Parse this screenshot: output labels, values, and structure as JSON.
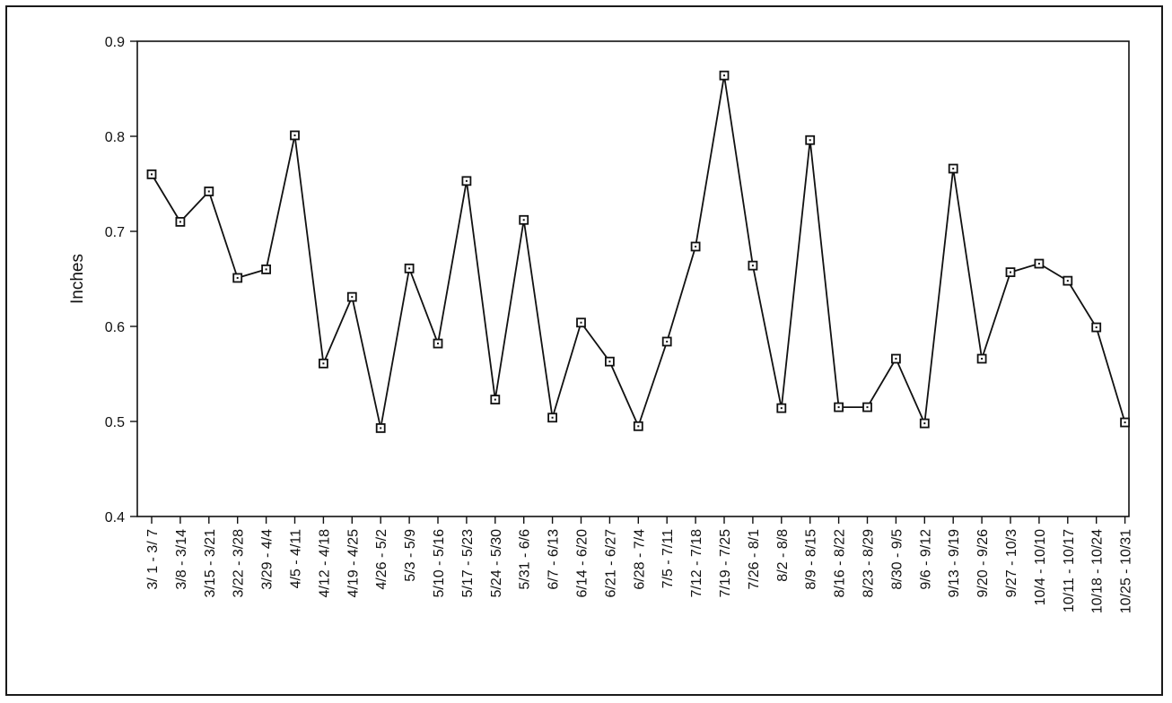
{
  "chart_data": {
    "type": "line",
    "title": "",
    "xlabel": "",
    "ylabel": "Inches",
    "ylim": [
      0.4,
      0.9
    ],
    "yticks": [
      "0.4",
      "0.5",
      "0.6",
      "0.7",
      "0.8",
      "0.9"
    ],
    "grid": false,
    "legend": "none",
    "marker": "square-with-dot",
    "line_color": "#111111",
    "categories": [
      "3/ 1 - 3/ 7",
      "3/8 - 3/14",
      "3/15 - 3/21",
      "3/22 - 3/28",
      "3/29 - 4/4",
      "4/5 - 4/11",
      "4/12 - 4/18",
      "4/19 - 4/25",
      "4/26 - 5/2",
      "5/3 - 5/9",
      "5/10 - 5/16",
      "5/17 - 5/23",
      "5/24 - 5/30",
      "5/31 - 6/6",
      "6/7 - 6/13",
      "6/14 - 6/20",
      "6/21 - 6/27",
      "6/28 - 7/4",
      "7/5 - 7/11",
      "7/12 - 7/18",
      "7/19 - 7/25",
      "7/26 - 8/1",
      "8/2 - 8/8",
      "8/9 - 8/15",
      "8/16 - 8/22",
      "8/23 - 8/29",
      "8/30 - 9/5",
      "9/6 - 9/12",
      "9/13 - 9/19",
      "9/20 - 9/26",
      "9/27 - 10/3",
      "10/4 - 10/10",
      "10/11 - 10/17",
      "10/18 - 10/24",
      "10/25 - 10/31"
    ],
    "values": [
      0.76,
      0.71,
      0.742,
      0.651,
      0.66,
      0.801,
      0.561,
      0.631,
      0.493,
      0.661,
      0.582,
      0.753,
      0.523,
      0.712,
      0.504,
      0.604,
      0.563,
      0.495,
      0.584,
      0.684,
      0.864,
      0.664,
      0.514,
      0.796,
      0.515,
      0.515,
      0.566,
      0.498,
      0.766,
      0.566,
      0.657,
      0.666,
      0.648,
      0.599,
      0.499
    ]
  }
}
